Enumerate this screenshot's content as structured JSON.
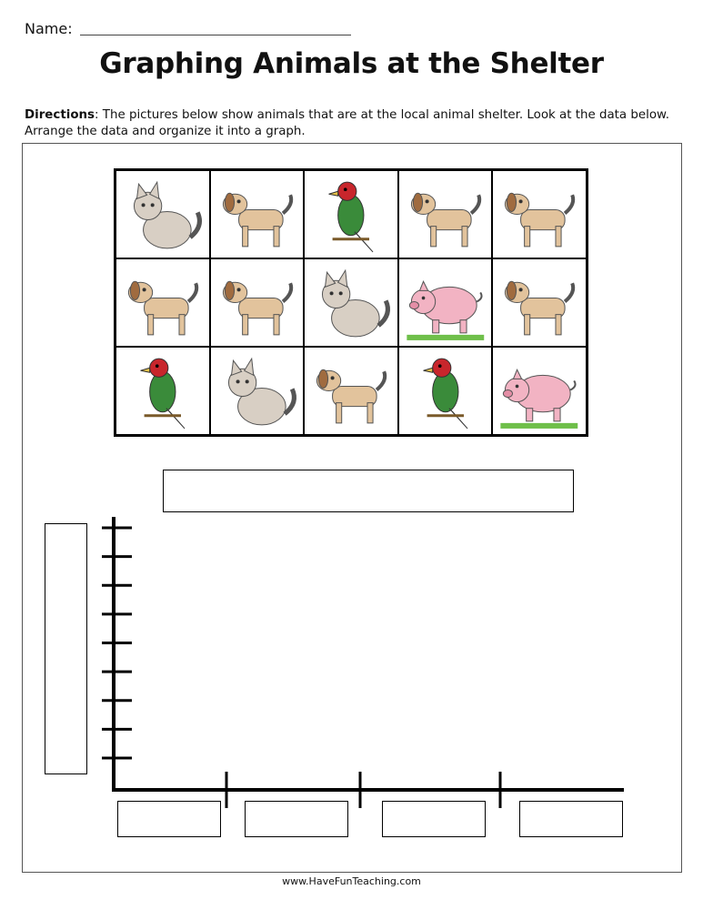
{
  "header": {
    "name_label": "Name:",
    "title": "Graphing Animals at the Shelter"
  },
  "directions": {
    "label": "Directions",
    "text": ": The pictures below show animals that are at the local animal shelter. Look at the data below. Arrange the data and organize it into a graph."
  },
  "animal_grid": [
    {
      "animal": "cat",
      "icon": "cat-icon"
    },
    {
      "animal": "dog",
      "icon": "dog-icon"
    },
    {
      "animal": "bird",
      "icon": "bird-icon"
    },
    {
      "animal": "dog",
      "icon": "dog-icon"
    },
    {
      "animal": "dog",
      "icon": "dog-icon"
    },
    {
      "animal": "dog",
      "icon": "dog-icon"
    },
    {
      "animal": "dog",
      "icon": "dog-icon"
    },
    {
      "animal": "cat",
      "icon": "cat-icon"
    },
    {
      "animal": "pig",
      "icon": "pig-icon"
    },
    {
      "animal": "dog",
      "icon": "dog-icon"
    },
    {
      "animal": "bird",
      "icon": "bird-icon"
    },
    {
      "animal": "cat",
      "icon": "cat-icon"
    },
    {
      "animal": "dog",
      "icon": "dog-icon"
    },
    {
      "animal": "bird",
      "icon": "bird-icon"
    },
    {
      "animal": "pig",
      "icon": "pig-icon"
    }
  ],
  "graph": {
    "graph_title": "",
    "y_label": "",
    "x_categories": [
      "",
      "",
      "",
      ""
    ],
    "y_tick_count": 9,
    "x_divider_count": 3
  },
  "footer": {
    "website": "www.HaveFunTeaching.com"
  }
}
